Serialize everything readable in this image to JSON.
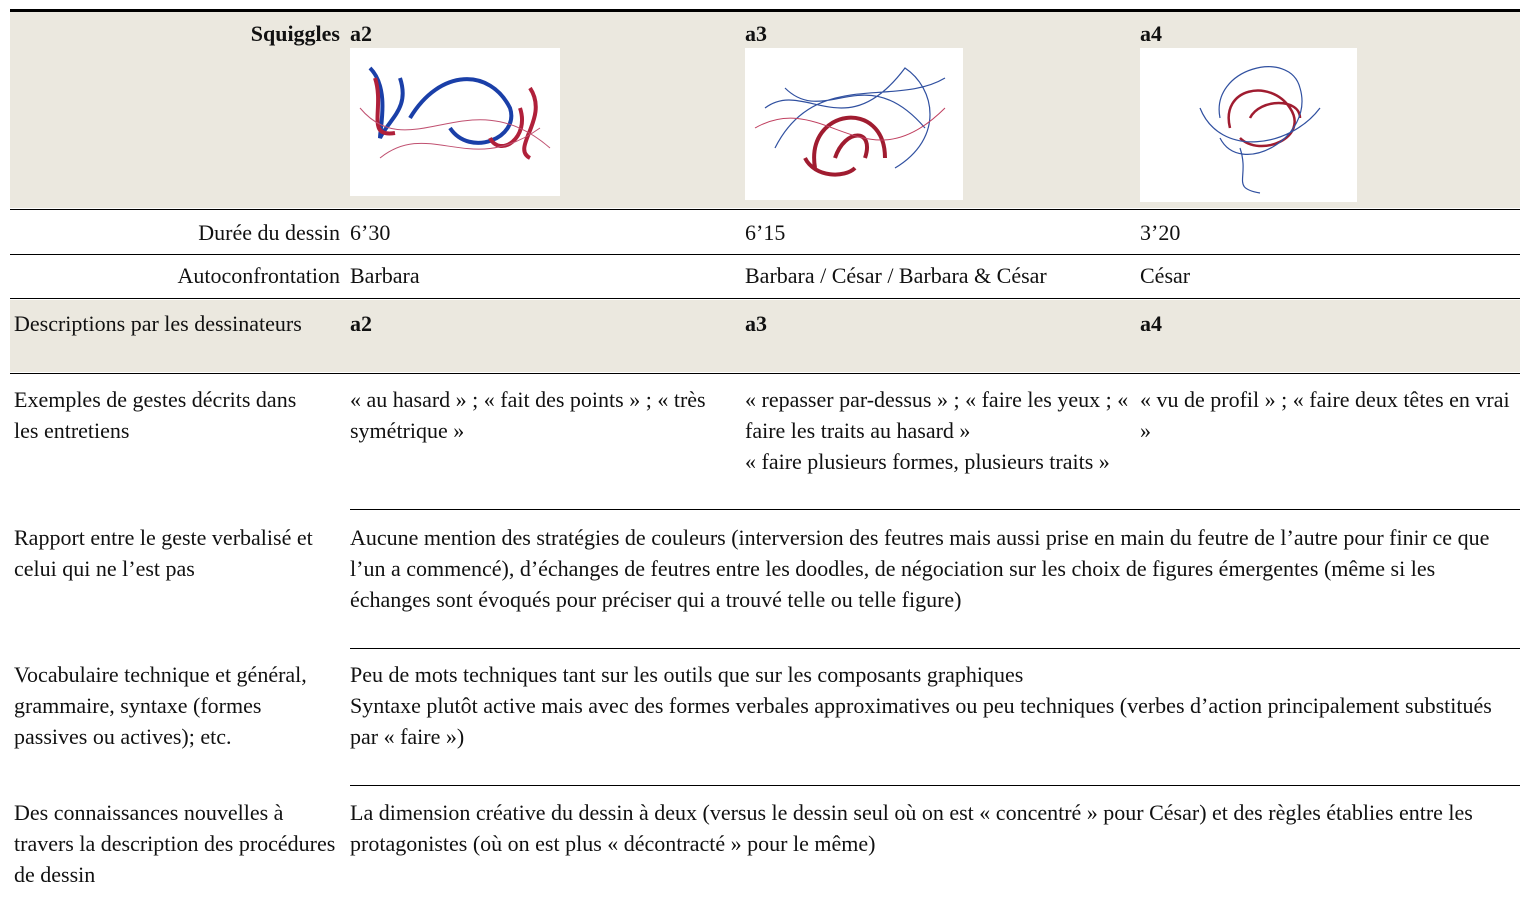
{
  "header": {
    "label": "Squiggles",
    "columns": [
      "a2",
      "a3",
      "a4"
    ]
  },
  "rows": [
    {
      "label": "Durée du dessin",
      "cells": [
        "6’30",
        "6’15",
        "3’20"
      ]
    },
    {
      "label": "Autoconfrontation",
      "cells": [
        "Barbara",
        "Barbara / César / Barbara & César",
        "César"
      ]
    }
  ],
  "descriptions": {
    "label": "Descriptions par les dessinateurs",
    "columns": [
      "a2",
      "a3",
      "a4"
    ]
  },
  "details": [
    {
      "label": "Exemples de gestes décrits dans les entretiens",
      "cells": [
        " « au hasard » ; « fait des points » ; « très symétrique »",
        "« repasser par-dessus » ; « faire les yeux ; « faire les traits au hasard »\n« faire plusieurs formes, plusieurs traits »",
        "« vu de profil » ; « faire deux têtes en vrai »"
      ]
    },
    {
      "label": "Rapport entre le geste verbalisé et celui qui ne l’est pas",
      "text": "Aucune mention des stratégies de couleurs (interversion des feutres mais aussi prise en main du feutre de l’autre pour finir ce que l’un a commencé), d’échanges de feutres entre les doodles, de négociation sur les choix de figures émergentes (même si les échanges sont évoqués pour préciser qui a trouvé telle ou telle figure)"
    },
    {
      "label": "Vocabulaire technique et général, grammaire, syntaxe (formes passives ou actives); etc.",
      "text": "Peu de mots techniques tant sur les outils que sur les composants graphiques\nSyntaxe plutôt active mais avec des formes verbales approximatives ou peu techniques (verbes d’action principalement substitués par « faire »)"
    },
    {
      "label": "Des connaissances nouvelles à travers la description des procédures de dessin",
      "text": "La dimension créative du dessin à deux (versus le dessin seul où on est « concentré » pour César) et des règles établies entre les protagonistes (où on est plus « décontracté » pour le même)"
    }
  ]
}
